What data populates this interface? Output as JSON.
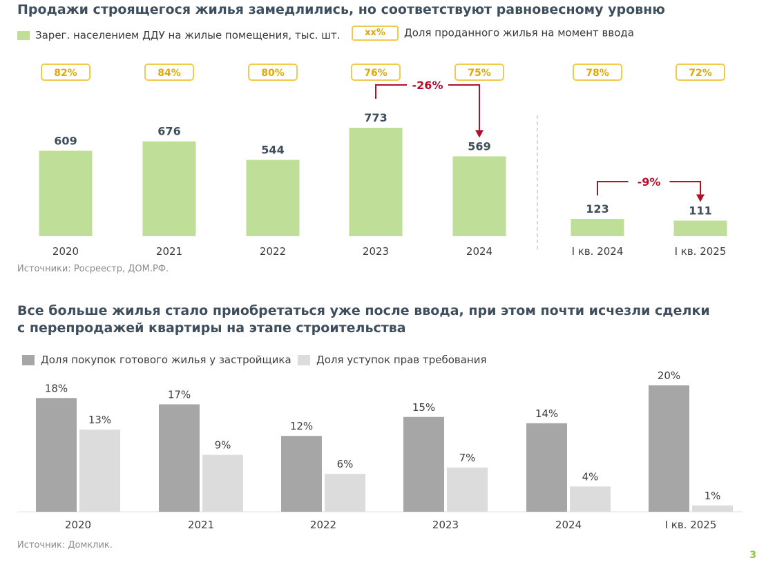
{
  "page": {
    "number": "3"
  },
  "top": {
    "title": "Продажи строящегося жилья замедлились, но соответствуют равновесному уровню",
    "legend_bar": "Зарег. населением ДДУ на жилые помещения, тыс. шт.",
    "legend_pct_sample": "xx%",
    "legend_pct": "Доля проданного жилья на момент ввода",
    "source": "Источники: Росреестр, ДОМ.РФ."
  },
  "bottom": {
    "title_line1": "Все больше жилья стало приобретаться уже после ввода, при этом почти исчезли сделки",
    "title_line2": "с перепродажей квартиры на этапе строительства",
    "source": "Источник: Домклик."
  },
  "colors": {
    "green_bar": "#bfdf99",
    "pct_border": "#f2c94c",
    "pct_text": "#e0a800",
    "arrow": "#b0102c",
    "dark_gray_bar": "#a6a6a6",
    "light_gray_bar": "#dcdcdc"
  },
  "chart_data": [
    {
      "type": "bar",
      "categories": [
        "2020",
        "2021",
        "2022",
        "2023",
        "2024",
        "I кв. 2024",
        "I кв. 2025"
      ],
      "series": [
        {
          "name": "Зарег. населением ДДУ на жилые помещения, тыс. шт.",
          "values": [
            609,
            676,
            544,
            773,
            569,
            123,
            111
          ],
          "labels": [
            "609",
            "676",
            "544",
            "773",
            "569",
            "123",
            "111"
          ]
        },
        {
          "name": "Доля проданного жилья на момент ввода",
          "values": [
            82,
            84,
            80,
            76,
            75,
            78,
            72
          ],
          "labels": [
            "82%",
            "84%",
            "80%",
            "76%",
            "75%",
            "78%",
            "72%"
          ]
        }
      ],
      "annotations": [
        {
          "from": "2023",
          "to": "2024",
          "label": "-26%"
        },
        {
          "from": "I кв. 2024",
          "to": "I кв. 2025",
          "label": "-9%"
        }
      ],
      "ylim": [
        0,
        900
      ]
    },
    {
      "type": "bar",
      "categories": [
        "2020",
        "2021",
        "2022",
        "2023",
        "2024",
        "I кв. 2025"
      ],
      "series": [
        {
          "name": "Доля покупок готового жилья у застройщика",
          "values": [
            18,
            17,
            12,
            15,
            14,
            20
          ],
          "labels": [
            "18%",
            "17%",
            "12%",
            "15%",
            "14%",
            "20%"
          ]
        },
        {
          "name": "Доля уступок прав требования",
          "values": [
            13,
            9,
            6,
            7,
            4,
            1
          ],
          "labels": [
            "13%",
            "9%",
            "6%",
            "7%",
            "4%",
            "1%"
          ]
        }
      ],
      "ylim": [
        0,
        20
      ]
    }
  ]
}
